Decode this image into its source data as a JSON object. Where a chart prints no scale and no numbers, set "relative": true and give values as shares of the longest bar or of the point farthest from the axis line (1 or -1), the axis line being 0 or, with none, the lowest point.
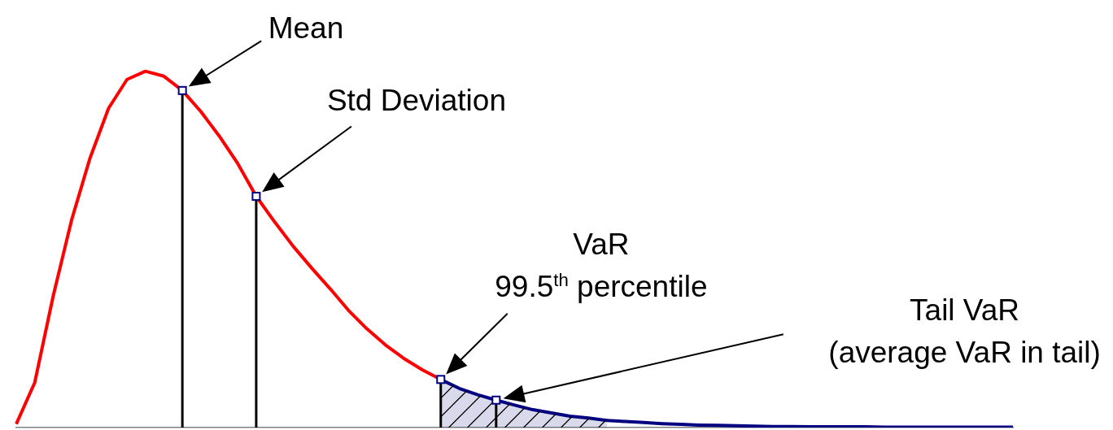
{
  "chart_data": {
    "type": "line",
    "relative": true,
    "legend": false,
    "categories": [
      null,
      null,
      null,
      null,
      null,
      null,
      null,
      null,
      null,
      null,
      null,
      null,
      null,
      null,
      null,
      null,
      null,
      null,
      null,
      null,
      null,
      null,
      null,
      null,
      null,
      null,
      null,
      null,
      null,
      null,
      null,
      null,
      null,
      null,
      null,
      null,
      null,
      null,
      null,
      null,
      null,
      null,
      null,
      null,
      null,
      null,
      null,
      null,
      null,
      null,
      null,
      null,
      null,
      null,
      null
    ],
    "series": [
      {
        "color": "#ff0000",
        "values": [
          0.01,
          0.126,
          0.369,
          0.583,
          0.757,
          0.896,
          0.977,
          1,
          0.986,
          0.946,
          0.887,
          0.818,
          0.741,
          0.649,
          0.577,
          0.509,
          0.448,
          0.39,
          0.329,
          0.277,
          0.232,
          0.194,
          0.162,
          0.135,
          null,
          null,
          null,
          null,
          null,
          null,
          null,
          null,
          null,
          null,
          null,
          null,
          null,
          null,
          null,
          null,
          null,
          null,
          null,
          null,
          null,
          null,
          null,
          null,
          null,
          null,
          null,
          null,
          null,
          null,
          null
        ]
      },
      {
        "type": "area",
        "color": "#000080",
        "values": [
          null,
          null,
          null,
          null,
          null,
          null,
          null,
          null,
          null,
          null,
          null,
          null,
          null,
          null,
          null,
          null,
          null,
          null,
          null,
          null,
          null,
          null,
          null,
          0.135,
          0.11,
          0.092,
          0.077,
          0.063,
          0.05,
          0.041,
          0.032,
          0.027,
          0.02,
          null,
          null,
          null,
          null,
          null,
          null,
          null,
          null,
          null,
          null,
          null,
          null,
          null,
          null,
          null,
          null,
          null,
          null,
          null,
          null,
          null,
          null
        ]
      },
      {
        "color": "#000080",
        "values": [
          null,
          null,
          null,
          null,
          null,
          null,
          null,
          null,
          null,
          null,
          null,
          null,
          null,
          null,
          null,
          null,
          null,
          null,
          null,
          null,
          null,
          null,
          null,
          null,
          null,
          null,
          null,
          null,
          null,
          null,
          null,
          null,
          0.02,
          0.017,
          0.014,
          0.011,
          0.009,
          0.007,
          0.006,
          0.005,
          0.004,
          0.003,
          0.003,
          0.002,
          0.002,
          0.002,
          0.002,
          0.001,
          0.001,
          0.001,
          0.001,
          0.001,
          0.001,
          0.001,
          0.001
        ]
      }
    ],
    "annotations": [
      "Mean",
      "Std Deviation",
      "VaR\n99.5$^{th}$ percentile",
      "Tail VaR\n(average VaR in tail)"
    ]
  }
}
